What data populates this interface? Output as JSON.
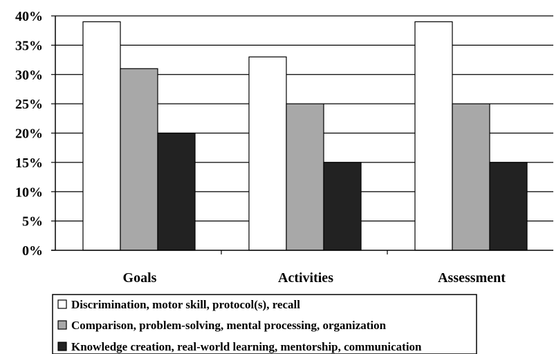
{
  "chart_data": {
    "type": "bar",
    "categories": [
      "Goals",
      "Activities",
      "Assessment"
    ],
    "series": [
      {
        "name": "Discrimination, motor skill, protocol(s), recall",
        "values": [
          39,
          33,
          39
        ],
        "color": "#ffffff"
      },
      {
        "name": "Comparison, problem-solving, mental processing, organization",
        "values": [
          31,
          25,
          25
        ],
        "color": "#a8a8a8"
      },
      {
        "name": "Knowledge creation, real-world learning, mentorship, communication",
        "values": [
          20,
          15,
          15
        ],
        "color": "#222222"
      }
    ],
    "y_ticks": [
      "0%",
      "5%",
      "10%",
      "15%",
      "20%",
      "25%",
      "30%",
      "35%",
      "40%"
    ],
    "ylim": [
      0,
      40
    ],
    "y_unit": "%",
    "grid": true,
    "legend_position": "bottom"
  }
}
